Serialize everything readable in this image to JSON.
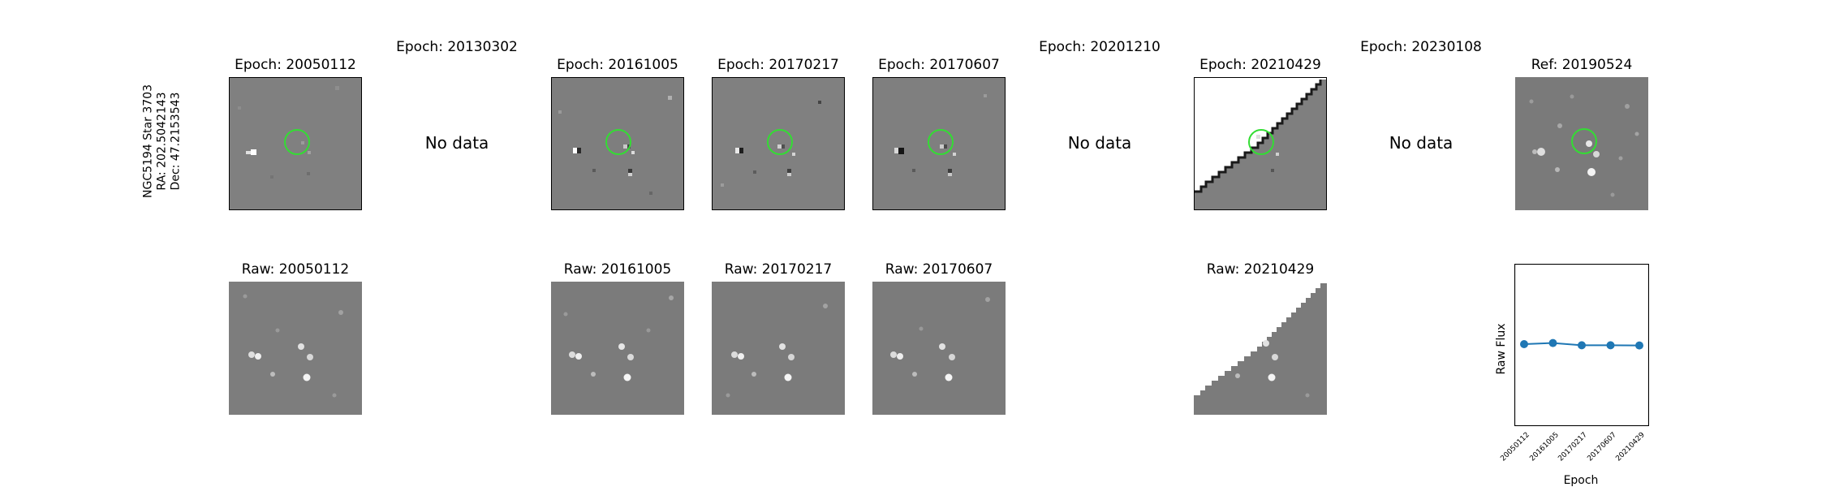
{
  "star_label": {
    "line1": "NGC5194 Star 3703",
    "line2": "RA: 202.5042143",
    "line3": "Dec: 47.2153543"
  },
  "epochs": [
    {
      "title": "Epoch: 20050112",
      "state": "diff",
      "raw_title": "Raw: 20050112"
    },
    {
      "title": "Epoch: 20130302",
      "state": "nodata",
      "nodata_text": "No data"
    },
    {
      "title": "Epoch: 20161005",
      "state": "diff",
      "raw_title": "Raw: 20161005"
    },
    {
      "title": "Epoch: 20170217",
      "state": "diff",
      "raw_title": "Raw: 20170217"
    },
    {
      "title": "Epoch: 20170607",
      "state": "diff",
      "raw_title": "Raw: 20170607"
    },
    {
      "title": "Epoch: 20201210",
      "state": "nodata",
      "nodata_text": "No data"
    },
    {
      "title": "Epoch: 20210429",
      "state": "diff-edge",
      "raw_title": "Raw: 20210429"
    },
    {
      "title": "Epoch: 20230108",
      "state": "nodata",
      "nodata_text": "No data"
    }
  ],
  "reference": {
    "title": "Ref: 20190524"
  },
  "colors": {
    "circle": "#33dd33",
    "line": "#1f77b4",
    "bg_gray": "#7f7f7f"
  },
  "chart_data": {
    "type": "line",
    "xlabel": "Epoch",
    "ylabel": "Raw Flux",
    "categories": [
      "20050112",
      "20161005",
      "20170217",
      "20170607",
      "20210429"
    ],
    "series": [
      {
        "values": [
          1.005,
          1.012,
          0.998,
          0.998,
          0.997
        ]
      }
    ],
    "ylim": [
      0.5,
      1.5
    ],
    "grid": false
  }
}
